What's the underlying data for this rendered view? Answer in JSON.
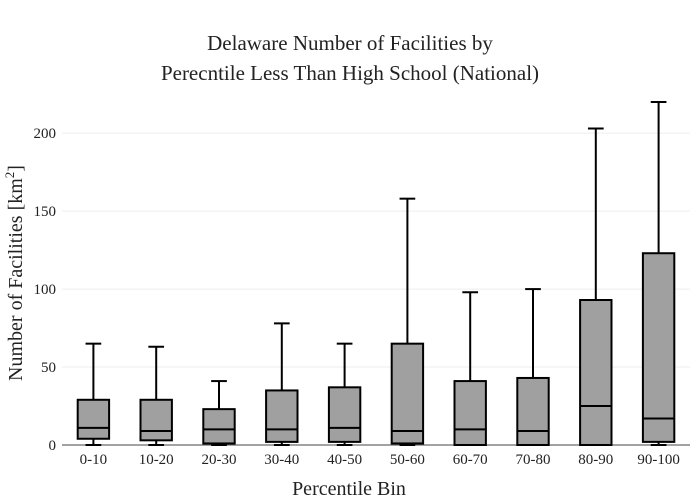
{
  "chart_data": {
    "type": "box",
    "title_lines": [
      "Delaware Number of Facilities by",
      "Perecntile Less Than High School (National)"
    ],
    "xlabel": "Percentile Bin",
    "ylabel_main": "Number of Facilities  [km",
    "ylabel_sup": "2",
    "ylabel_end": "]",
    "ylim": [
      0,
      220
    ],
    "yticks": [
      0,
      50,
      100,
      150,
      200
    ],
    "grid": true,
    "categories": [
      "0-10",
      "10-20",
      "20-30",
      "30-40",
      "40-50",
      "50-60",
      "60-70",
      "70-80",
      "80-90",
      "90-100"
    ],
    "boxes": [
      {
        "min": 0,
        "q1": 4,
        "median": 11,
        "q3": 29,
        "max": 65
      },
      {
        "min": 0,
        "q1": 3,
        "median": 9,
        "q3": 29,
        "max": 63
      },
      {
        "min": 0,
        "q1": 1,
        "median": 10,
        "q3": 23,
        "max": 41
      },
      {
        "min": 0,
        "q1": 2,
        "median": 10,
        "q3": 35,
        "max": 78
      },
      {
        "min": 0,
        "q1": 2,
        "median": 11,
        "q3": 37,
        "max": 65
      },
      {
        "min": 0,
        "q1": 1,
        "median": 9,
        "q3": 65,
        "max": 158
      },
      {
        "min": 0,
        "q1": 0,
        "median": 10,
        "q3": 41,
        "max": 98
      },
      {
        "min": 0,
        "q1": 0,
        "median": 9,
        "q3": 43,
        "max": 100
      },
      {
        "min": 0,
        "q1": 0,
        "median": 25,
        "q3": 93,
        "max": 203
      },
      {
        "min": 0,
        "q1": 2,
        "median": 17,
        "q3": 123,
        "max": 220
      }
    ],
    "colors": {
      "box_fill": "#a0a0a0",
      "box_line": "#000000",
      "grid": "#eeeeee"
    }
  }
}
